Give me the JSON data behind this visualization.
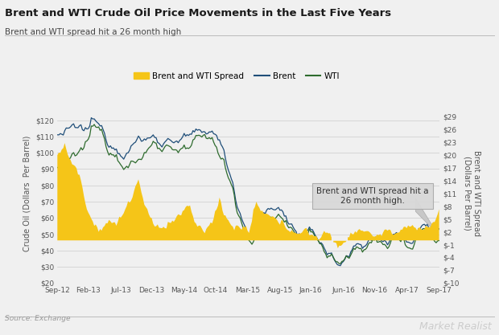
{
  "title": "Brent and WTI Crude Oil Price Movements in the Last Five Years",
  "subtitle": "Brent and WTI spread hit a 26 month high",
  "ylabel_left": "Crude Oil (Dollars  Per Barrel)",
  "ylabel_right": "Brent and WTI Spread\n(Dollars Per Barrel)",
  "source": "Source: Exchange",
  "watermark": "Market Realist",
  "legend_labels": [
    "Brent and WTI Spread",
    "Brent",
    "WTI"
  ],
  "spread_color": "#F5C518",
  "brent_color": "#1F4E79",
  "wti_color": "#2E6B2E",
  "annotation_text": "Brent and WTI spread hit a\n26 month high.",
  "annotation_fill": "#d3d3d3",
  "left_ylim": [
    20,
    130
  ],
  "right_ylim": [
    -10,
    32
  ],
  "left_yticks": [
    20,
    30,
    40,
    50,
    60,
    70,
    80,
    90,
    100,
    110,
    120
  ],
  "right_yticks": [
    -10,
    -7,
    -4,
    -1,
    2,
    5,
    8,
    11,
    14,
    17,
    20,
    23,
    26,
    29
  ],
  "background_color": "#f0f0f0",
  "plot_bg": "#f0f0f0",
  "x_labels": [
    "Sep-12",
    "Feb-13",
    "Jul-13",
    "Dec-13",
    "May-14",
    "Oct-14",
    "Mar-15",
    "Aug-15",
    "Jan-16",
    "Jun-16",
    "Nov-16",
    "Apr-17",
    "Sep-17"
  ],
  "n_points": 260
}
